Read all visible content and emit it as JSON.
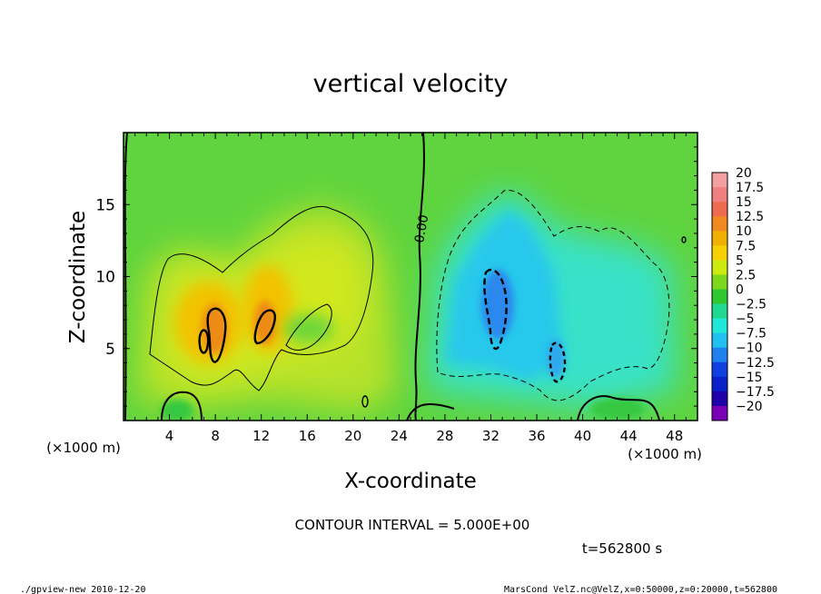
{
  "chart_data": {
    "type": "heatmap",
    "title": "vertical velocity",
    "xlabel": "X-coordinate",
    "ylabel": "Z-coordinate",
    "x_unit_label": "(×1000 m)",
    "y_unit_label": "(×1000 m)",
    "xlim": [
      0,
      50
    ],
    "ylim": [
      0,
      20
    ],
    "x_ticks": [
      4,
      8,
      12,
      16,
      20,
      24,
      28,
      32,
      36,
      40,
      44,
      48
    ],
    "y_ticks": [
      5,
      10,
      15
    ],
    "contour_interval_text": "CONTOUR INTERVAL = 5.000E+00",
    "zero_contour_label": "0.00",
    "colorbar": {
      "levels": [
        "20",
        "17.5",
        "15",
        "12.5",
        "10",
        "7.5",
        "5",
        "2.5",
        "0",
        "−2.5",
        "−5",
        "−7.5",
        "−10",
        "−12.5",
        "−15",
        "−17.5",
        "−20"
      ],
      "colors": [
        "#f4a0a0",
        "#f08080",
        "#ee6a50",
        "#f08a20",
        "#f0b000",
        "#f6d000",
        "#ccea10",
        "#7dd81c",
        "#30c830",
        "#20d890",
        "#20e8d8",
        "#20c0f0",
        "#2080f0",
        "#1040e0",
        "#0a20c8",
        "#2000a8",
        "#7a00b8"
      ]
    },
    "features": [
      {
        "name": "updraft-core-1",
        "x_center": 7.5,
        "z_center": 6.5,
        "peak": 12
      },
      {
        "name": "updraft-core-2",
        "x_center": 12.5,
        "z_center": 7.5,
        "peak": 11
      },
      {
        "name": "downdraft-core",
        "x_center": 32,
        "z_center": 8,
        "peak": -11
      }
    ]
  },
  "annotations": {
    "time_label": "t=562800 s",
    "footer_left": "./gpview-new  2010-12-20",
    "footer_right": "MarsCond_VelZ.nc@VelZ,x=0:50000,z=0:20000,t=562800"
  }
}
